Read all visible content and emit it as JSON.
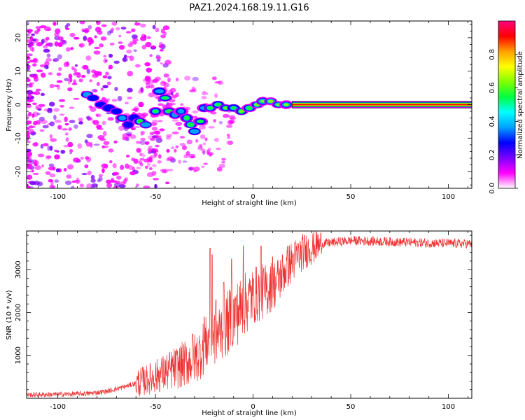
{
  "title": "PAZ1.2024.168.19.11.G16",
  "chart_data": [
    {
      "type": "heatmap",
      "xlabel": "Height of straight line (km)",
      "ylabel": "Frequency (Hz)",
      "xlim": [
        -116,
        112
      ],
      "ylim": [
        -25,
        25
      ],
      "xticks": [
        -100,
        -50,
        0,
        50,
        100
      ],
      "yticks": [
        -20,
        -10,
        0,
        10,
        20
      ],
      "colorbar": {
        "label": "Normalized spectral amplitude",
        "range": [
          0,
          1
        ],
        "ticks": [
          0.0,
          0.2,
          0.4,
          0.6,
          0.8
        ],
        "colormap": "gist_rainbow_r",
        "stops": [
          "#ffffff",
          "#ff00ff",
          "#7a00ff",
          "#0000ff",
          "#00a0ff",
          "#00ffff",
          "#00ff40",
          "#80ff00",
          "#ffff00",
          "#ffa000",
          "#ff0000",
          "#ff0080"
        ]
      },
      "carrier_line": {
        "y": 0,
        "x_start": 20,
        "x_end": 112,
        "half_width": 0.5
      },
      "ridge_points": [
        {
          "x": -85,
          "y": 3
        },
        {
          "x": -82,
          "y": 2
        },
        {
          "x": -78,
          "y": 0
        },
        {
          "x": -74,
          "y": -1
        },
        {
          "x": -70,
          "y": -2
        },
        {
          "x": -67,
          "y": -4
        },
        {
          "x": -64,
          "y": -6
        },
        {
          "x": -61,
          "y": -4
        },
        {
          "x": -58,
          "y": -5
        },
        {
          "x": -55,
          "y": -6
        },
        {
          "x": -50,
          "y": -2
        },
        {
          "x": -48,
          "y": 4
        },
        {
          "x": -45,
          "y": 2
        },
        {
          "x": -43,
          "y": -2
        },
        {
          "x": -40,
          "y": -3
        },
        {
          "x": -37,
          "y": -2
        },
        {
          "x": -34,
          "y": -4
        },
        {
          "x": -32,
          "y": -6
        },
        {
          "x": -30,
          "y": -8
        },
        {
          "x": -27,
          "y": -5
        },
        {
          "x": -25,
          "y": -1
        },
        {
          "x": -22,
          "y": -1
        },
        {
          "x": -18,
          "y": 0
        },
        {
          "x": -14,
          "y": -1
        },
        {
          "x": -10,
          "y": -1
        },
        {
          "x": -6,
          "y": -2
        },
        {
          "x": -2,
          "y": -1
        },
        {
          "x": 2,
          "y": 0
        },
        {
          "x": 5,
          "y": 1
        },
        {
          "x": 9,
          "y": 1
        },
        {
          "x": 13,
          "y": 0
        },
        {
          "x": 17,
          "y": 0
        }
      ]
    },
    {
      "type": "line",
      "xlabel": "Height of straight line (km)",
      "ylabel": "SNR (10 * v/v)",
      "xlim": [
        -116,
        112
      ],
      "ylim": [
        0,
        3900
      ],
      "xticks": [
        -100,
        -50,
        0,
        50,
        100
      ],
      "yticks": [
        1000,
        2000,
        3000
      ],
      "color": "#ee3333",
      "envelope": [
        {
          "x": -116,
          "y": 80
        },
        {
          "x": -100,
          "y": 90
        },
        {
          "x": -85,
          "y": 110
        },
        {
          "x": -75,
          "y": 160
        },
        {
          "x": -65,
          "y": 280
        },
        {
          "x": -55,
          "y": 420
        },
        {
          "x": -45,
          "y": 600
        },
        {
          "x": -35,
          "y": 800
        },
        {
          "x": -28,
          "y": 1000
        },
        {
          "x": -22,
          "y": 1400
        },
        {
          "x": -18,
          "y": 1500
        },
        {
          "x": -12,
          "y": 1800
        },
        {
          "x": -8,
          "y": 2000
        },
        {
          "x": -4,
          "y": 2200
        },
        {
          "x": 0,
          "y": 2400
        },
        {
          "x": 6,
          "y": 2500
        },
        {
          "x": 12,
          "y": 2700
        },
        {
          "x": 18,
          "y": 3100
        },
        {
          "x": 25,
          "y": 3400
        },
        {
          "x": 35,
          "y": 3600
        },
        {
          "x": 50,
          "y": 3680
        },
        {
          "x": 70,
          "y": 3650
        },
        {
          "x": 90,
          "y": 3620
        },
        {
          "x": 112,
          "y": 3600
        }
      ],
      "spikes": [
        {
          "x": -31,
          "y": 1500
        },
        {
          "x": -25,
          "y": 1900
        },
        {
          "x": -22,
          "y": 3500
        },
        {
          "x": -21,
          "y": 3350
        },
        {
          "x": -19,
          "y": 2300
        },
        {
          "x": -15,
          "y": 2700
        },
        {
          "x": -11,
          "y": 3250
        },
        {
          "x": -5,
          "y": 3550
        },
        {
          "x": 0,
          "y": 2800
        },
        {
          "x": 4,
          "y": 3550
        },
        {
          "x": 8,
          "y": 2500
        },
        {
          "x": 10,
          "y": 3300
        }
      ]
    }
  ]
}
